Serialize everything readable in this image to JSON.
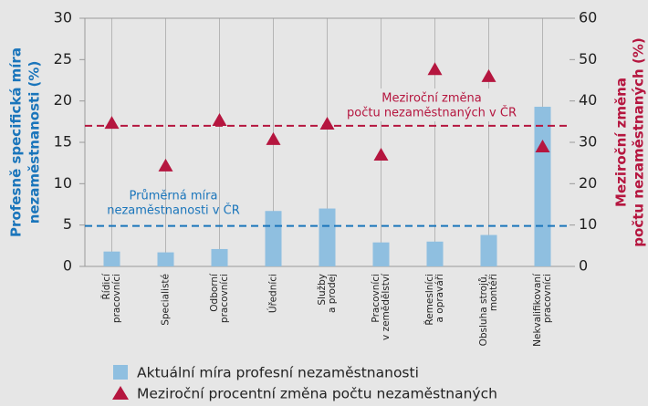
{
  "chart_data": {
    "type": "bar",
    "categories": [
      [
        "Řídicí",
        "pracovníci"
      ],
      [
        "Specialisté"
      ],
      [
        "Odborní",
        "pracovníci"
      ],
      [
        "Úředníci"
      ],
      [
        "Služby",
        "a prodej"
      ],
      [
        "Pracovníci",
        "v zemědělství"
      ],
      [
        "Řemeslníci",
        "a opraváři"
      ],
      [
        "Obsluha strojů,",
        "montéři"
      ],
      [
        "Nekvalifikovaní",
        "pracovníci"
      ]
    ],
    "series": [
      {
        "name": "Aktuální míra profesní nezaměstnanosti",
        "type": "bar",
        "color": "#8fbfe0",
        "values": [
          1.8,
          1.7,
          2.1,
          6.7,
          7.0,
          2.9,
          3.0,
          3.8,
          19.3
        ]
      },
      {
        "name": "Meziroční procentní změna počtu nezaměstnaných",
        "type": "triangle",
        "axis": "y2",
        "color": "#b5163f",
        "values": [
          34.6,
          24.3,
          35.3,
          30.7,
          34.4,
          26.9,
          47.6,
          45.9,
          28.9
        ]
      }
    ],
    "reference_lines": [
      {
        "axis": "y",
        "value": 4.9,
        "color": "#1a75bb",
        "label": [
          "Průměrná míra",
          "nezaměstnanosti v ČR"
        ]
      },
      {
        "axis": "y2",
        "value": 34,
        "color": "#b5163f",
        "label": [
          "Meziroční změna",
          "počtu nezaměstnaných v ČR"
        ]
      }
    ],
    "ylabel": [
      "Profesně specifická míra",
      "nezaměstnanosti (%)"
    ],
    "y2label": [
      "Meziroční změna",
      "počtu nezaměstnaných (%)"
    ],
    "ylim": [
      0,
      30
    ],
    "yticks": [
      0,
      5,
      10,
      15,
      20,
      25,
      30
    ],
    "y2lim": [
      0,
      60
    ],
    "y2ticks": [
      0,
      10,
      20,
      30,
      40,
      50,
      60
    ]
  }
}
